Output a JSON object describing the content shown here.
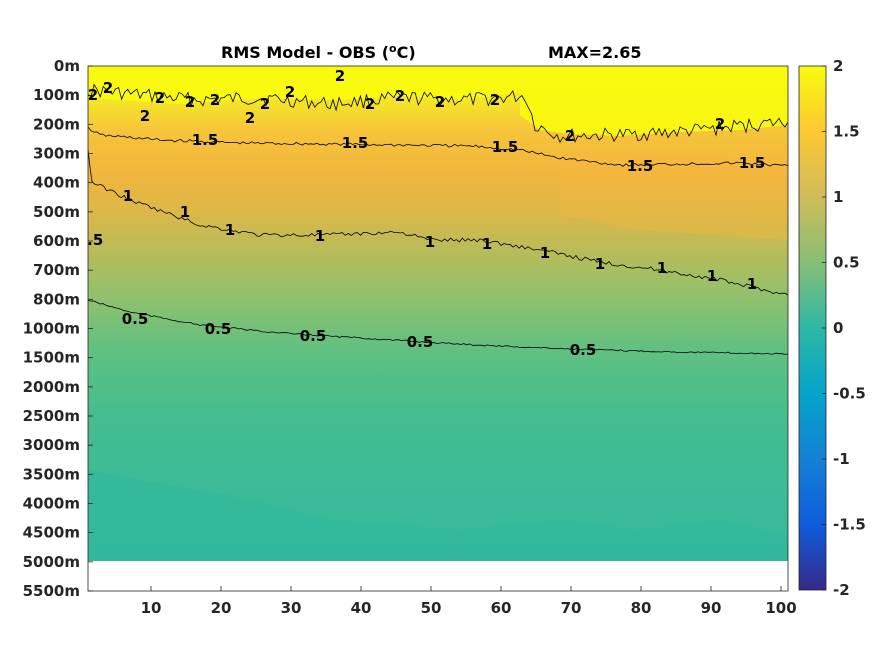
{
  "figure": {
    "title_main": "RMS Model - OBS (",
    "title_sup": "o",
    "title_end": "C)",
    "max_label": "MAX=2.65"
  },
  "chart_data": {
    "type": "heatmap",
    "title": "RMS Model - OBS (°C)",
    "annotation": "MAX=2.65",
    "x_ticks": [
      10,
      20,
      30,
      40,
      50,
      60,
      70,
      80,
      90,
      100
    ],
    "xlim": [
      1,
      101
    ],
    "y_tick_labels": [
      "0m",
      "100m",
      "200m",
      "300m",
      "400m",
      "500m",
      "600m",
      "700m",
      "800m",
      "1000m",
      "1500m",
      "2000m",
      "2500m",
      "3000m",
      "3500m",
      "4000m",
      "4500m",
      "5000m",
      "5500m"
    ],
    "y_nonlinear_depth_axis": true,
    "colorbar": {
      "ticks": [
        2,
        1.5,
        1,
        0.5,
        0,
        -0.5,
        -1,
        -1.5,
        -2
      ],
      "clim": [
        -2,
        2
      ],
      "colormap": "parula",
      "colors": [
        "#352a87",
        "#0f5cdd",
        "#1481d6",
        "#06a4ca",
        "#2eb7a4",
        "#87bf77",
        "#d1bb59",
        "#fec832",
        "#f9fb0e"
      ]
    },
    "depth_profile_at_x_mid": [
      {
        "depth": "0m",
        "value": 2.0
      },
      {
        "depth": "100m",
        "value": 2.0
      },
      {
        "depth": "200m",
        "value": 1.75
      },
      {
        "depth": "300m",
        "value": 1.5
      },
      {
        "depth": "400m",
        "value": 1.35
      },
      {
        "depth": "500m",
        "value": 1.2
      },
      {
        "depth": "600m",
        "value": 1.0
      },
      {
        "depth": "700m",
        "value": 0.9
      },
      {
        "depth": "800m",
        "value": 0.75
      },
      {
        "depth": "1000m",
        "value": 0.55
      },
      {
        "depth": "1500m",
        "value": 0.45
      },
      {
        "depth": "2000m",
        "value": 0.35
      },
      {
        "depth": "2500m",
        "value": 0.3
      },
      {
        "depth": "3000m",
        "value": 0.28
      },
      {
        "depth": "3500m",
        "value": 0.26
      },
      {
        "depth": "4000m",
        "value": 0.25
      },
      {
        "depth": "4500m",
        "value": 0.24
      },
      {
        "depth": "5000m",
        "value": 0.24
      }
    ],
    "contours": [
      {
        "level": 2,
        "labels": [
          "2",
          "2",
          "2",
          "2",
          "2",
          "2",
          "2",
          "2",
          "2",
          "2",
          "2",
          "2",
          "2",
          "2",
          "2",
          "2"
        ]
      },
      {
        "level": 1.5,
        "labels": [
          "1.5",
          "1.5",
          "1.5",
          "1.5",
          "1.5"
        ]
      },
      {
        "level": 1,
        "labels": [
          "1",
          "1",
          "1",
          "1",
          "1",
          "1",
          "1",
          "1",
          "1",
          "1",
          "1"
        ]
      },
      {
        "level": 0.5,
        "labels": [
          "0.5",
          "0.5",
          "0.5",
          "0.5",
          "0.5",
          "0.5"
        ]
      }
    ]
  }
}
